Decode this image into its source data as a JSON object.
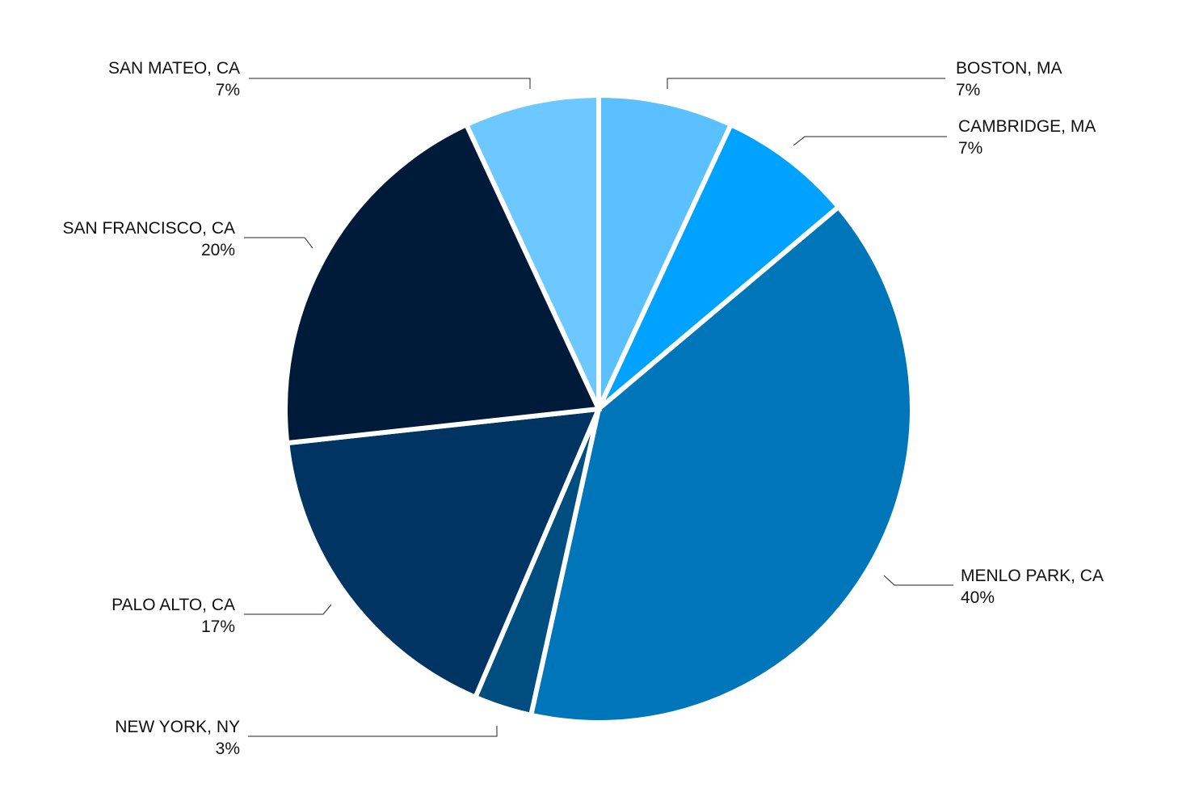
{
  "chart_data": {
    "type": "pie",
    "start_angle_deg": 0,
    "direction": "clockwise",
    "slices": [
      {
        "label": "BOSTON, MA",
        "value": 7,
        "display": "7%",
        "color": "#5AC0FF"
      },
      {
        "label": "CAMBRIDGE, MA",
        "value": 7,
        "display": "7%",
        "color": "#00A2FF"
      },
      {
        "label": "MENLO PARK, CA",
        "value": 40,
        "display": "40%",
        "color": "#0076BA"
      },
      {
        "label": "NEW YORK, NY",
        "value": 3,
        "display": "3%",
        "color": "#004D80"
      },
      {
        "label": "PALO ALTO, CA",
        "value": 17,
        "display": "17%",
        "color": "#003462"
      },
      {
        "label": "SAN FRANCISCO, CA",
        "value": 20,
        "display": "20%",
        "color": "#001A3A"
      },
      {
        "label": "SAN MATEO, CA",
        "value": 7,
        "display": "7%",
        "color": "#6CC8FF"
      }
    ]
  }
}
